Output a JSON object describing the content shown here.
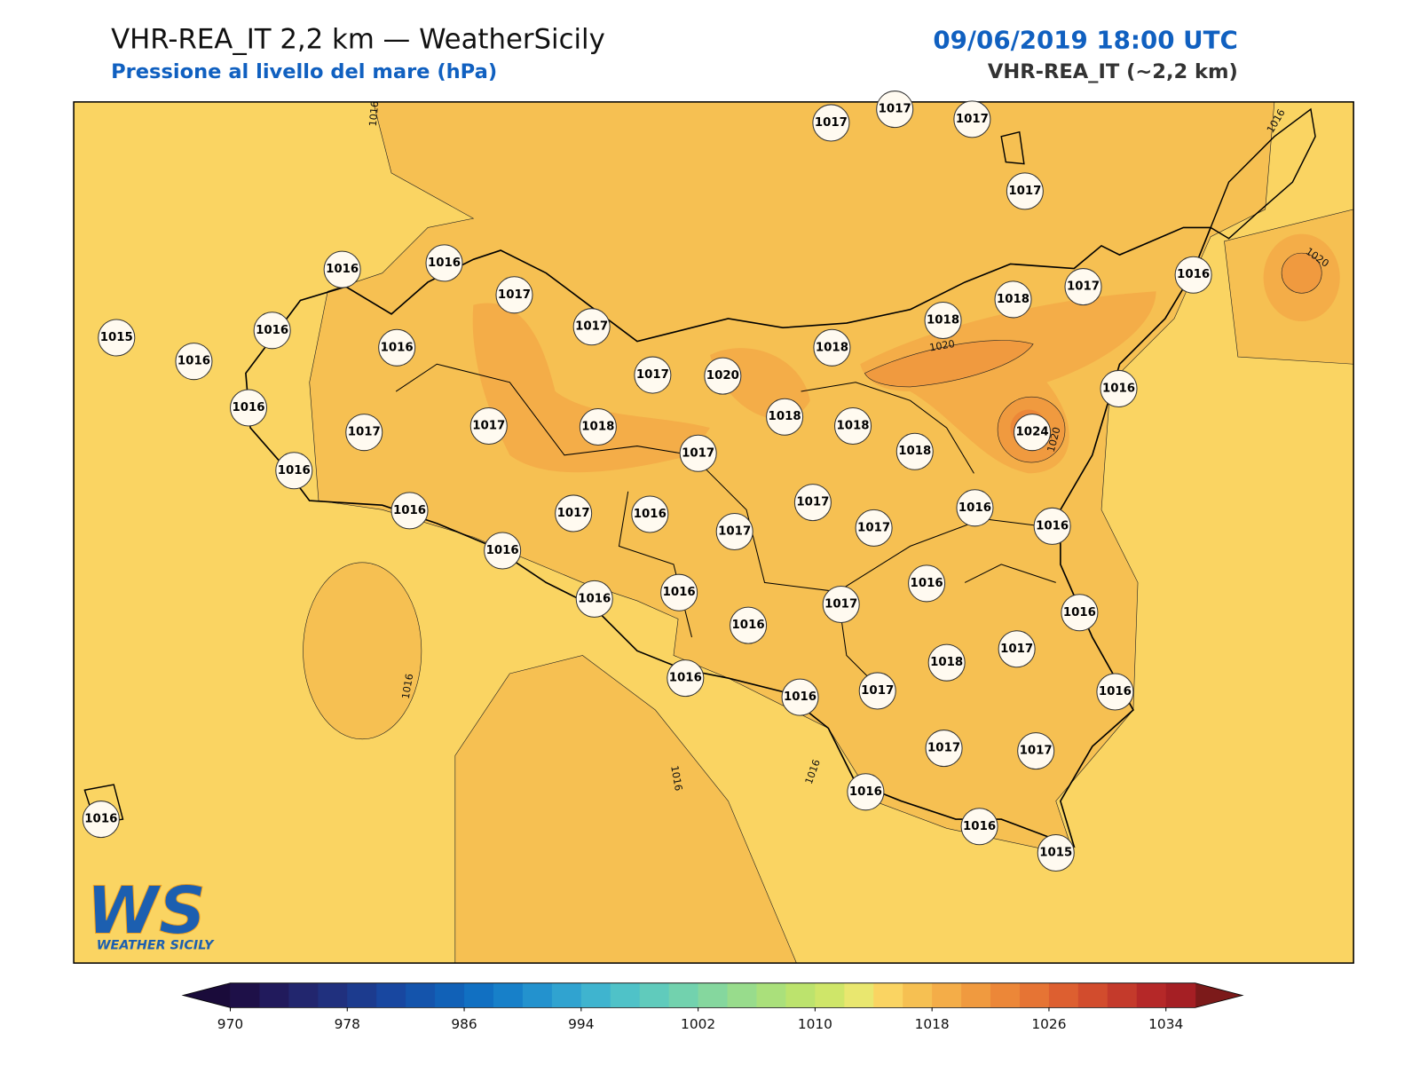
{
  "header": {
    "title": "VHR-REA_IT 2,2 km — WeatherSicily",
    "subtitle": "Pressione al livello del mare (hPa)",
    "datetime": "09/06/2019 18:00 UTC",
    "model": "VHR-REA_IT (~2,2 km)"
  },
  "stations": [
    1017,
    1017,
    1017,
    1017,
    1016,
    1016,
    1017,
    1017,
    1016,
    1015,
    1016,
    1016,
    1017,
    1020,
    1016,
    1018,
    1018,
    1018,
    1018,
    1017,
    1016,
    1016,
    1018,
    1018,
    1024,
    1017,
    1017,
    1018,
    1017,
    1016,
    1016,
    1017,
    1016,
    1017,
    1017,
    1017,
    1016,
    1016,
    1016,
    1016,
    1016,
    1016,
    1017,
    1016,
    1016,
    1018,
    1017,
    1016,
    1016,
    1017,
    1016,
    1017,
    1017,
    1016,
    1016,
    1015,
    1016
  ],
  "contour_labels": [
    1016,
    1016,
    1020,
    1020,
    1020,
    1016,
    1016,
    1016
  ],
  "logo": {
    "mark": "WS",
    "name": "WEATHER SICILY"
  },
  "colorbar": {
    "range": [
      970,
      1036
    ],
    "ticks": [
      970,
      978,
      986,
      994,
      1002,
      1010,
      1018,
      1026,
      1034
    ],
    "under": "#1a0b3a",
    "over": "#7c1a1a",
    "colors": [
      "#1e1048",
      "#211a5c",
      "#22266e",
      "#20307e",
      "#1c3b8e",
      "#1847a0",
      "#1454ac",
      "#1161b7",
      "#1170c2",
      "#1780c9",
      "#2392ce",
      "#30a3d0",
      "#3fb4cf",
      "#4fc2c8",
      "#60cbbc",
      "#72d2ae",
      "#85d79e",
      "#98dc8c",
      "#aae07b",
      "#bce36d",
      "#cfe669",
      "#e9e76f",
      "#fad462",
      "#f6c052",
      "#f4ad48",
      "#f09a3f",
      "#ec8738",
      "#e67434",
      "#dd5f30",
      "#d24c2d",
      "#c43a2b",
      "#b52828",
      "#a51f24"
    ]
  }
}
